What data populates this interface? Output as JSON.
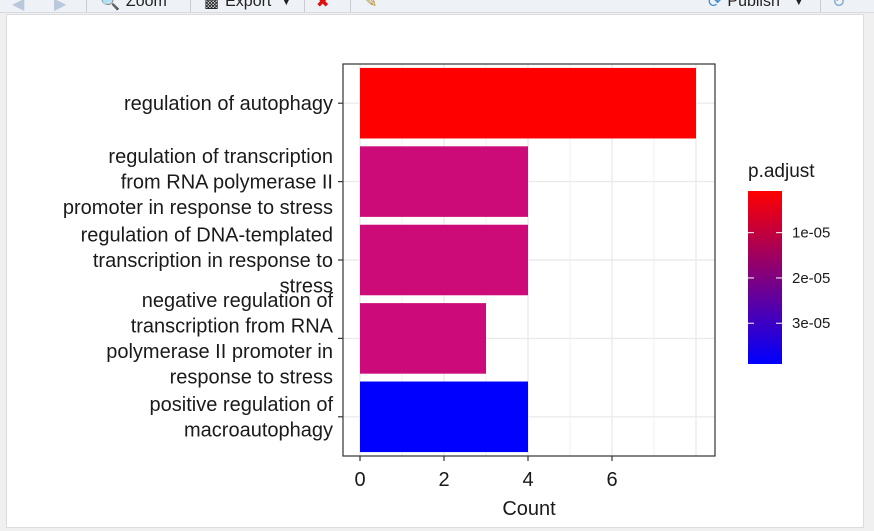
{
  "toolbar": {
    "zoom_label": "Zoom",
    "export_label": "Export",
    "publish_label": "Publish"
  },
  "icons": {
    "back": "arrow-left-icon",
    "forward": "arrow-right-icon",
    "zoom": "magnifier-icon",
    "export": "image-export-icon",
    "remove": "remove-plot-icon",
    "clear": "broom-icon",
    "publish": "publish-icon",
    "refresh": "refresh-icon"
  },
  "chart_data": {
    "type": "bar",
    "orientation": "horizontal",
    "categories": [
      "regulation of autophagy",
      "regulation of transcription from RNA polymerase II promoter in response to stress",
      "regulation of DNA-templated transcription in response to stress",
      "negative regulation of transcription from RNA polymerase II promoter in response to stress",
      "positive regulation of macroautophagy"
    ],
    "category_lines": [
      [
        "regulation of autophagy"
      ],
      [
        "regulation of transcription",
        "from RNA polymerase II",
        "promoter in response to stress"
      ],
      [
        "regulation of DNA-templated",
        "transcription in response to",
        "stress"
      ],
      [
        "negative regulation of",
        "transcription from RNA",
        "polymerase II promoter in",
        "response to stress"
      ],
      [
        "positive regulation of",
        "macroautophagy"
      ]
    ],
    "values": [
      8,
      4,
      4,
      3,
      4
    ],
    "p_adjust": [
      8e-07,
      2.1e-05,
      2.1e-05,
      2.2e-05,
      3.9e-05
    ],
    "bar_colors": [
      "#ff0000",
      "#cc0a78",
      "#cc0a78",
      "#cc0a7a",
      "#0000ff"
    ],
    "xlabel": "Count",
    "ylabel": "",
    "xlim": [
      0,
      8
    ],
    "xticks": [
      0,
      2,
      4,
      6
    ],
    "grid": true,
    "legend": {
      "title": "p.adjust",
      "placement": "right",
      "colormap": [
        "#ff0000",
        "#0000ff"
      ],
      "ticks": [
        {
          "label": "1e-05",
          "value": 1e-05
        },
        {
          "label": "2e-05",
          "value": 2e-05
        },
        {
          "label": "3e-05",
          "value": 3e-05
        }
      ],
      "range": [
        8e-07,
        3.9e-05
      ]
    }
  }
}
